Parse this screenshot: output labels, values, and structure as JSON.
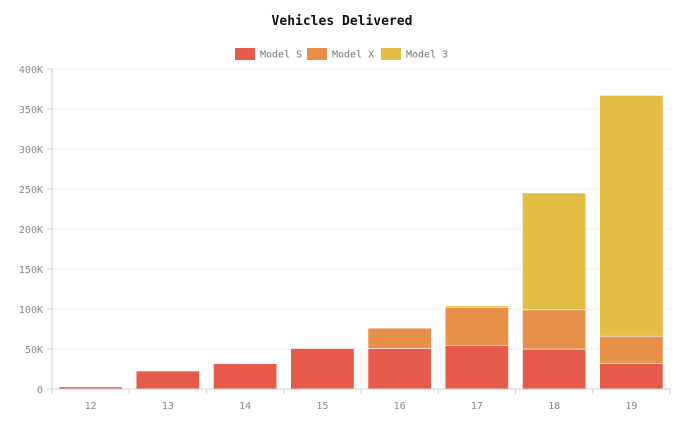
{
  "chart_data": {
    "type": "bar",
    "stacked": true,
    "title": "Vehicles Delivered",
    "categories": [
      "12",
      "13",
      "14",
      "15",
      "16",
      "17",
      "18",
      "19"
    ],
    "series": [
      {
        "name": "Model S",
        "color": "#e55a4b",
        "values": [
          2600,
          22500,
          31600,
          50600,
          50800,
          54700,
          50000,
          32000
        ]
      },
      {
        "name": "Model X",
        "color": "#e6904a",
        "values": [
          0,
          0,
          0,
          0,
          25300,
          47500,
          49000,
          34000
        ]
      },
      {
        "name": "Model 3",
        "color": "#e2be45",
        "values": [
          0,
          0,
          0,
          0,
          0,
          1800,
          146000,
          301000
        ]
      }
    ],
    "ylim": [
      0,
      400000
    ],
    "yticks": [
      0,
      50000,
      100000,
      150000,
      200000,
      250000,
      300000,
      350000,
      400000
    ],
    "ytick_labels": [
      "0",
      "50K",
      "100K",
      "150K",
      "200K",
      "250K",
      "300K",
      "350K",
      "400K"
    ],
    "legend_position": "top-center",
    "grid": true
  }
}
